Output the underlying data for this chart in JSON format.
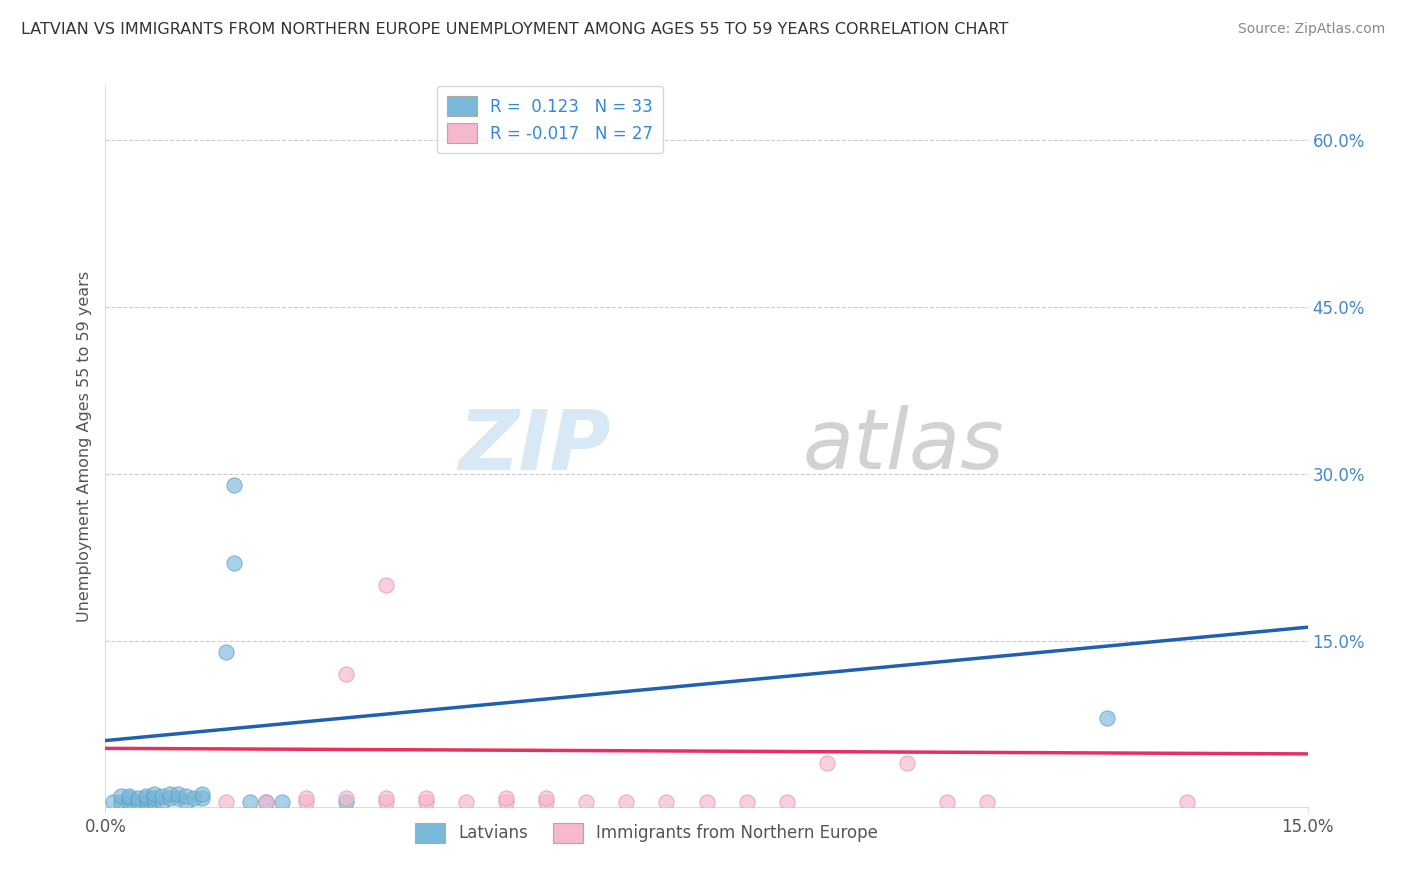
{
  "title": "LATVIAN VS IMMIGRANTS FROM NORTHERN EUROPE UNEMPLOYMENT AMONG AGES 55 TO 59 YEARS CORRELATION CHART",
  "source": "Source: ZipAtlas.com",
  "ylabel": "Unemployment Among Ages 55 to 59 years",
  "xlim": [
    0.0,
    0.15
  ],
  "ylim": [
    0.0,
    0.65
  ],
  "ytick_values_right": [
    0.6,
    0.45,
    0.3,
    0.15
  ],
  "ytick_labels_right": [
    "60.0%",
    "45.0%",
    "30.0%",
    "15.0%"
  ],
  "latvian_scatter": [
    [
      0.001,
      0.005
    ],
    [
      0.002,
      0.005
    ],
    [
      0.002,
      0.01
    ],
    [
      0.003,
      0.005
    ],
    [
      0.003,
      0.008
    ],
    [
      0.003,
      0.01
    ],
    [
      0.004,
      0.005
    ],
    [
      0.004,
      0.008
    ],
    [
      0.005,
      0.005
    ],
    [
      0.005,
      0.008
    ],
    [
      0.005,
      0.01
    ],
    [
      0.006,
      0.005
    ],
    [
      0.006,
      0.008
    ],
    [
      0.006,
      0.012
    ],
    [
      0.007,
      0.005
    ],
    [
      0.007,
      0.01
    ],
    [
      0.008,
      0.008
    ],
    [
      0.008,
      0.012
    ],
    [
      0.009,
      0.008
    ],
    [
      0.009,
      0.012
    ],
    [
      0.01,
      0.005
    ],
    [
      0.01,
      0.01
    ],
    [
      0.011,
      0.008
    ],
    [
      0.012,
      0.008
    ],
    [
      0.012,
      0.012
    ],
    [
      0.015,
      0.14
    ],
    [
      0.016,
      0.22
    ],
    [
      0.018,
      0.005
    ],
    [
      0.02,
      0.005
    ],
    [
      0.022,
      0.005
    ],
    [
      0.016,
      0.29
    ],
    [
      0.03,
      0.005
    ],
    [
      0.125,
      0.08
    ]
  ],
  "immigrant_scatter": [
    [
      0.015,
      0.005
    ],
    [
      0.02,
      0.005
    ],
    [
      0.025,
      0.005
    ],
    [
      0.025,
      0.008
    ],
    [
      0.03,
      0.008
    ],
    [
      0.03,
      0.12
    ],
    [
      0.035,
      0.005
    ],
    [
      0.035,
      0.008
    ],
    [
      0.04,
      0.005
    ],
    [
      0.04,
      0.008
    ],
    [
      0.045,
      0.005
    ],
    [
      0.05,
      0.005
    ],
    [
      0.05,
      0.008
    ],
    [
      0.055,
      0.005
    ],
    [
      0.055,
      0.008
    ],
    [
      0.06,
      0.005
    ],
    [
      0.065,
      0.005
    ],
    [
      0.07,
      0.005
    ],
    [
      0.075,
      0.005
    ],
    [
      0.08,
      0.005
    ],
    [
      0.085,
      0.005
    ],
    [
      0.035,
      0.2
    ],
    [
      0.09,
      0.04
    ],
    [
      0.1,
      0.04
    ],
    [
      0.105,
      0.005
    ],
    [
      0.11,
      0.005
    ],
    [
      0.135,
      0.005
    ]
  ],
  "latvian_color": "#7ab8d9",
  "latvian_edge": "#5a9ec5",
  "immigrant_color": "#f5b8cc",
  "immigrant_edge": "#e090aa",
  "trend_latvian_color": "#2060b0",
  "trend_immigrant_color": "#e83060",
  "trend_lv_x0": 0.0,
  "trend_lv_y0": 0.06,
  "trend_lv_x1": 0.15,
  "trend_lv_y1": 0.162,
  "trend_im_x0": 0.0,
  "trend_im_y0": 0.053,
  "trend_im_x1": 0.15,
  "trend_im_y1": 0.048,
  "grid_color": "#cccccc",
  "background_color": "#ffffff",
  "leg1_label1": "R =  0.123   N = 33",
  "leg1_label2": "R = -0.017   N = 27",
  "leg2_label1": "Latvians",
  "leg2_label2": "Immigrants from Northern Europe"
}
